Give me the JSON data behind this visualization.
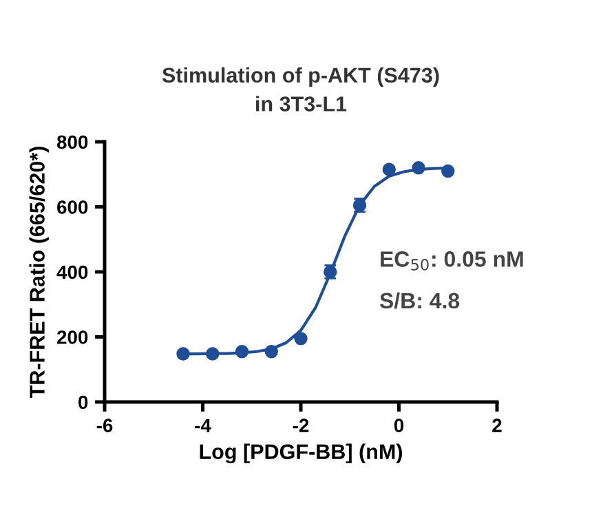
{
  "chart_data": {
    "type": "scatter",
    "title": "Stimulation of p-AKT (S473)\nin 3T3-L1",
    "xlabel": "Log [PDGF-BB] (nM)",
    "ylabel": "TR-FRET Ratio (665/620*)",
    "xlim": [
      -6,
      2
    ],
    "xticks": [
      -6,
      -4,
      -2,
      0,
      2
    ],
    "ylim": [
      0,
      800
    ],
    "yticks": [
      0,
      200,
      400,
      600,
      800
    ],
    "grid": false,
    "marker": "circle",
    "series": [
      {
        "color": "#1f4e96",
        "x": [
          -4.4,
          -3.8,
          -3.2,
          -2.6,
          -2.0,
          -1.4,
          -0.8,
          -0.2,
          0.4,
          1.0
        ],
        "values": [
          148,
          148,
          155,
          155,
          195,
          400,
          605,
          715,
          720,
          710
        ],
        "errors": [
          null,
          null,
          null,
          null,
          null,
          20,
          20,
          null,
          null,
          null
        ]
      },
      {
        "type": "line",
        "color": "#1f4e96",
        "line_style": "solid",
        "marker": "none",
        "x": [
          -4.4,
          -4.1,
          -3.8,
          -3.5,
          -3.2,
          -2.9,
          -2.6,
          -2.3,
          -2.0,
          -1.7,
          -1.4,
          -1.1,
          -0.8,
          -0.5,
          -0.2,
          0.1,
          0.4,
          0.7,
          1.0
        ],
        "values": [
          148,
          148,
          149,
          149,
          151,
          155,
          163,
          182,
          220,
          290,
          395,
          511,
          605,
          663,
          694,
          708,
          715,
          718,
          719
        ]
      }
    ],
    "annotations": [
      "EC$_{50}$: 0.05 nM",
      "S/B: 4.8"
    ]
  }
}
